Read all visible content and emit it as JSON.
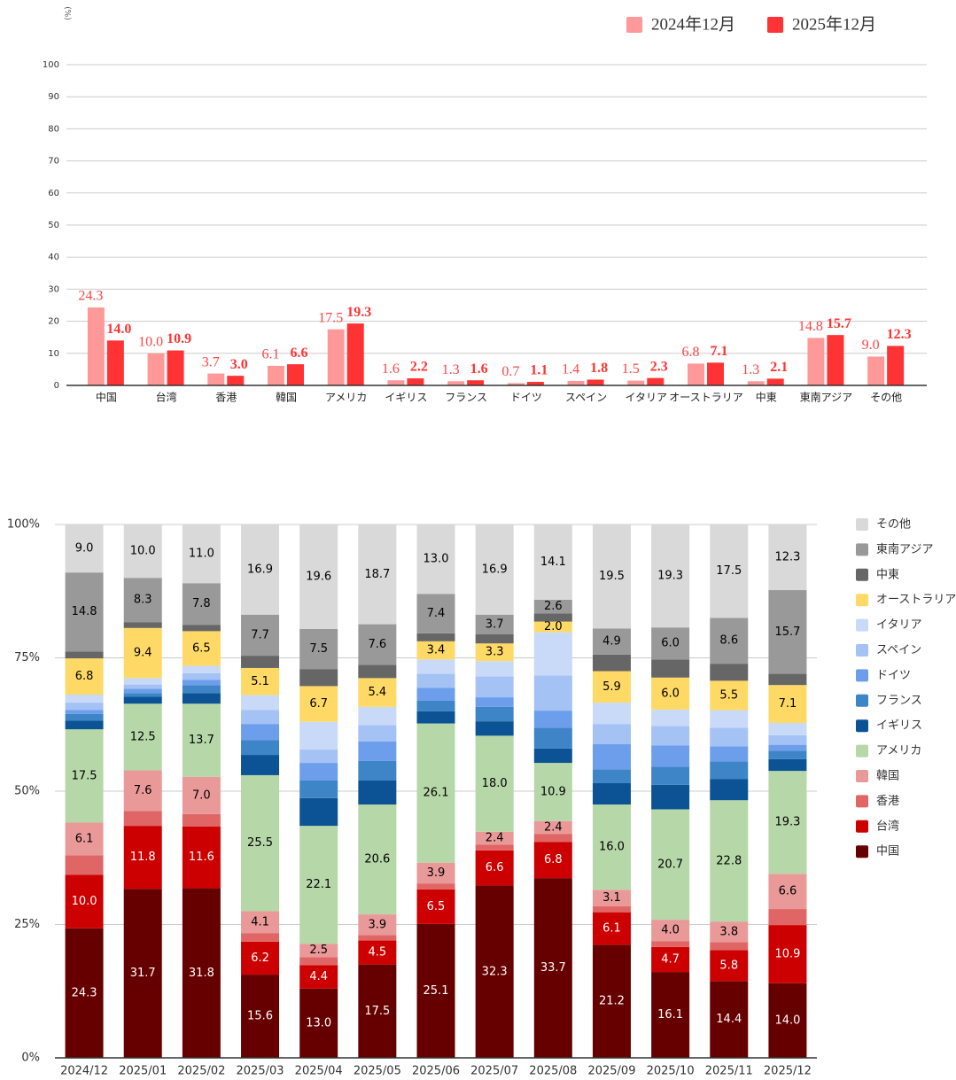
{
  "chart_data": [
    {
      "type": "bar",
      "y_label": "(%)",
      "legend": "top-right",
      "categories": [
        "中国",
        "台湾",
        "香港",
        "韓国",
        "アメリカ",
        "イギリス",
        "フランス",
        "ドイツ",
        "スペイン",
        "イタリア",
        "オーストラリア",
        "中東",
        "東南アジア",
        "その他"
      ],
      "series": [
        {
          "name": "2024年12月",
          "color": "#ff9999",
          "label_color": "#ff4444",
          "values": [
            24.3,
            10.0,
            3.7,
            6.1,
            17.5,
            1.6,
            1.3,
            0.7,
            1.4,
            1.5,
            6.8,
            1.3,
            14.8,
            9.0
          ],
          "value_labels": [
            "24.3",
            "10.0",
            "3.7",
            "6.1",
            "17.5",
            "1.6",
            "1.3",
            "0.7",
            "1.4",
            "1.5",
            "6.8",
            "1.3",
            "14.8",
            "9.0"
          ]
        },
        {
          "name": "2025年12月",
          "color": "#ff3333",
          "label_color": "#ff3333",
          "values": [
            14.0,
            10.9,
            3.0,
            6.6,
            19.3,
            2.2,
            1.6,
            1.1,
            1.8,
            2.3,
            7.1,
            2.1,
            15.7,
            12.3
          ],
          "value_labels": [
            "14.0",
            "10.9",
            "3.0",
            "6.6",
            "19.3",
            "2.2",
            "1.6",
            "1.1",
            "1.8",
            "2.3",
            "7.1",
            "2.1",
            "15.7",
            "12.3"
          ]
        }
      ],
      "ylim": [
        0,
        100
      ],
      "yticks": [
        0,
        10,
        20,
        30,
        40,
        50,
        60,
        70,
        80,
        90,
        100
      ],
      "grid": true
    },
    {
      "type": "stacked_bar",
      "legend": "right",
      "categories": [
        "2024/12",
        "2025/01",
        "2025/02",
        "2025/03",
        "2025/04",
        "2025/05",
        "2025/06",
        "2025/07",
        "2025/08",
        "2025/09",
        "2025/10",
        "2025/11",
        "2025/12"
      ],
      "series": [
        {
          "name": "中国",
          "color": "#660000",
          "label_color": "#ffffff",
          "values": [
            24.3,
            31.7,
            31.8,
            15.6,
            13.0,
            17.5,
            25.1,
            32.3,
            33.7,
            21.2,
            16.1,
            14.4,
            14.0
          ],
          "value_labels": [
            "24.3",
            "31.7",
            "31.8",
            "15.6",
            "13.0",
            "17.5",
            "25.1",
            "32.3",
            "33.7",
            "21.2",
            "16.1",
            "14.4",
            "14.0"
          ]
        },
        {
          "name": "台湾",
          "color": "#cc0000",
          "label_color": "#ffffff",
          "values": [
            10.0,
            11.8,
            11.6,
            6.2,
            4.4,
            4.5,
            6.5,
            6.6,
            6.8,
            6.1,
            4.7,
            5.8,
            10.9
          ],
          "value_labels": [
            "10.0",
            "11.8",
            "11.6",
            "6.2",
            "4.4",
            "4.5",
            "6.5",
            "6.6",
            "6.8",
            "6.1",
            "4.7",
            "5.8",
            "10.9"
          ]
        },
        {
          "name": "香港",
          "color": "#e06666",
          "values": [
            3.7,
            2.8,
            2.3,
            1.6,
            1.5,
            1.0,
            1.1,
            1.1,
            1.5,
            1.1,
            1.1,
            1.5,
            3.0
          ]
        },
        {
          "name": "韓国",
          "color": "#ea9999",
          "label_color": "#000000",
          "values": [
            6.1,
            7.6,
            7.0,
            4.1,
            2.5,
            3.9,
            3.9,
            2.4,
            2.4,
            3.1,
            4.0,
            3.8,
            6.6
          ],
          "value_labels": [
            "6.1",
            "7.6",
            "7.0",
            "4.1",
            "2.5",
            "3.9",
            "3.9",
            "2.4",
            "2.4",
            "3.1",
            "4.0",
            "3.8",
            "6.6"
          ]
        },
        {
          "name": "アメリカ",
          "color": "#b6d7a8",
          "label_color": "#000000",
          "values": [
            17.5,
            12.5,
            13.7,
            25.5,
            22.1,
            20.6,
            26.1,
            18.0,
            10.9,
            16.0,
            20.7,
            22.8,
            19.3
          ],
          "value_labels": [
            "17.5",
            "12.5",
            "13.7",
            "25.5",
            "22.1",
            "20.6",
            "26.1",
            "18.0",
            "10.9",
            "16.0",
            "20.7",
            "22.8",
            "19.3"
          ]
        },
        {
          "name": "イギリス",
          "color": "#0b5394",
          "values": [
            1.6,
            1.3,
            2.0,
            3.8,
            5.2,
            4.5,
            2.3,
            2.7,
            2.7,
            4.0,
            4.6,
            4.0,
            2.2
          ]
        },
        {
          "name": "フランス",
          "color": "#3d85c6",
          "values": [
            1.3,
            0.7,
            1.5,
            2.8,
            3.3,
            3.7,
            2.0,
            2.7,
            3.9,
            2.6,
            3.4,
            3.3,
            1.6
          ]
        },
        {
          "name": "ドイツ",
          "color": "#6d9eeb",
          "values": [
            0.7,
            0.8,
            1.0,
            3.0,
            3.3,
            3.6,
            2.4,
            1.8,
            3.2,
            4.7,
            4.0,
            2.8,
            1.1
          ]
        },
        {
          "name": "スペイン",
          "color": "#a4c2f4",
          "values": [
            1.4,
            0.8,
            1.2,
            2.6,
            2.5,
            3.1,
            2.6,
            3.9,
            6.6,
            3.8,
            3.6,
            3.5,
            1.8
          ]
        },
        {
          "name": "イタリア",
          "color": "#c9daf8",
          "values": [
            1.5,
            1.2,
            1.4,
            2.8,
            5.2,
            3.4,
            2.7,
            2.9,
            8.1,
            4.0,
            3.1,
            3.3,
            2.3
          ]
        },
        {
          "name": "オーストラリア",
          "color": "#ffd966",
          "label_color": "#000000",
          "values": [
            6.8,
            9.4,
            6.5,
            5.1,
            6.7,
            5.4,
            3.4,
            3.3,
            2.0,
            5.9,
            6.0,
            5.5,
            7.1
          ],
          "value_labels": [
            "6.8",
            "9.4",
            "6.5",
            "5.1",
            "6.7",
            "5.4",
            "3.4",
            "3.3",
            "2.0",
            "5.9",
            "6.0",
            "5.5",
            "7.1"
          ]
        },
        {
          "name": "中東",
          "color": "#666666",
          "values": [
            1.3,
            1.1,
            1.2,
            2.3,
            3.2,
            2.5,
            1.5,
            1.7,
            1.5,
            3.1,
            3.4,
            3.2,
            2.1
          ]
        },
        {
          "name": "東南アジア",
          "color": "#999999",
          "label_color": "#000000",
          "values": [
            14.8,
            8.3,
            7.8,
            7.7,
            7.5,
            7.6,
            7.4,
            3.7,
            2.6,
            4.9,
            6.0,
            8.6,
            15.7
          ],
          "value_labels": [
            "14.8",
            "8.3",
            "7.8",
            "7.7",
            "7.5",
            "7.6",
            "7.4",
            "3.7",
            "2.6",
            "4.9",
            "6.0",
            "8.6",
            "15.7"
          ]
        },
        {
          "name": "その他",
          "color": "#d9d9d9",
          "label_color": "#000000",
          "values": [
            9.0,
            10.0,
            11.0,
            16.9,
            19.6,
            18.7,
            13.0,
            16.9,
            14.1,
            19.5,
            19.3,
            17.5,
            12.3
          ],
          "value_labels": [
            "9.0",
            "10.0",
            "11.0",
            "16.9",
            "19.6",
            "18.7",
            "13.0",
            "16.9",
            "14.1",
            "19.5",
            "19.3",
            "17.5",
            "12.3"
          ]
        }
      ],
      "ylim": [
        0,
        100
      ],
      "yticks": [
        {
          "value": 0,
          "label": "0%"
        },
        {
          "value": 25,
          "label": "25%"
        },
        {
          "value": 50,
          "label": "50%"
        },
        {
          "value": 75,
          "label": "75%"
        },
        {
          "value": 100,
          "label": "100%"
        }
      ],
      "grid": true
    }
  ]
}
